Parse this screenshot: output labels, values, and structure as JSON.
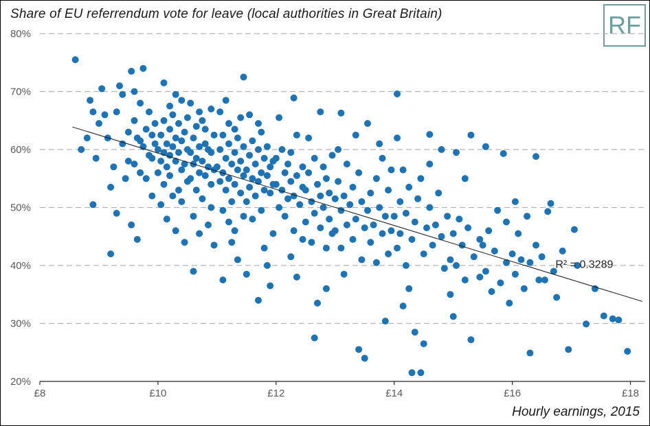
{
  "logo": {
    "text": "RF",
    "color": "#6d9e9e"
  },
  "chart_data": {
    "type": "scatter",
    "title": "Share of EU referrendum vote for leave (local authorities in Great Britain)",
    "xlabel": "Hourly earnings, 2015",
    "ylabel": "",
    "xlim": [
      8,
      18.25
    ],
    "ylim": [
      20,
      80
    ],
    "xticks": [
      8,
      10,
      12,
      14,
      16,
      18
    ],
    "xtick_labels": [
      "£8",
      "£10",
      "£12",
      "£14",
      "£16",
      "£18"
    ],
    "yticks": [
      20,
      30,
      40,
      50,
      60,
      70,
      80
    ],
    "ytick_labels": [
      "20%",
      "30%",
      "40%",
      "50%",
      "60%",
      "70%",
      "80%"
    ],
    "grid": "horizontal-dashed",
    "legend": "none",
    "point_color": "#1e73b5",
    "axis_color": "#262626",
    "grid_color": "#b3b3b3",
    "tick_label_color": "#595959",
    "trendline": {
      "x1": 8.55,
      "y1": 63.9,
      "x2": 18.2,
      "y2": 33.8,
      "label": "R² = 0.3289",
      "label_x": 16.73,
      "label_y": 39.6
    },
    "points": [
      [
        8.6,
        75.5
      ],
      [
        8.7,
        60.0
      ],
      [
        8.8,
        62.0
      ],
      [
        8.85,
        68.5
      ],
      [
        8.9,
        66.5
      ],
      [
        8.9,
        50.5
      ],
      [
        8.95,
        58.5
      ],
      [
        9.0,
        64.5
      ],
      [
        9.05,
        70.5
      ],
      [
        9.1,
        66.0
      ],
      [
        9.15,
        62.0
      ],
      [
        9.2,
        42.0
      ],
      [
        9.2,
        53.5
      ],
      [
        9.25,
        57.0
      ],
      [
        9.3,
        49.0
      ],
      [
        9.3,
        66.5
      ],
      [
        9.35,
        71.0
      ],
      [
        9.4,
        69.5
      ],
      [
        9.4,
        61.0
      ],
      [
        9.45,
        55.0
      ],
      [
        9.5,
        63.0
      ],
      [
        9.5,
        58.0
      ],
      [
        9.55,
        73.5
      ],
      [
        9.55,
        47.0
      ],
      [
        9.6,
        65.0
      ],
      [
        9.6,
        57.5
      ],
      [
        9.6,
        70.0
      ],
      [
        9.65,
        62.0
      ],
      [
        9.65,
        44.5
      ],
      [
        9.7,
        68.0
      ],
      [
        9.7,
        56.0
      ],
      [
        9.7,
        61.5
      ],
      [
        9.75,
        74.0
      ],
      [
        9.75,
        60.5
      ],
      [
        9.8,
        63.5
      ],
      [
        9.8,
        55.0
      ],
      [
        9.85,
        66.5
      ],
      [
        9.85,
        59.0
      ],
      [
        9.9,
        58.5
      ],
      [
        9.9,
        52.0
      ],
      [
        9.9,
        62.5
      ],
      [
        9.95,
        61.0
      ],
      [
        9.95,
        64.5
      ],
      [
        10.0,
        60.0
      ],
      [
        10.0,
        56.0
      ],
      [
        10.05,
        62.5
      ],
      [
        10.05,
        58.0
      ],
      [
        10.05,
        50.5
      ],
      [
        10.1,
        65.0
      ],
      [
        10.1,
        71.5
      ],
      [
        10.1,
        59.5
      ],
      [
        10.1,
        54.0
      ],
      [
        10.15,
        61.0
      ],
      [
        10.15,
        57.0
      ],
      [
        10.15,
        48.0
      ],
      [
        10.2,
        63.5
      ],
      [
        10.2,
        59.0
      ],
      [
        10.2,
        55.5
      ],
      [
        10.2,
        67.5
      ],
      [
        10.25,
        66.0
      ],
      [
        10.25,
        60.5
      ],
      [
        10.25,
        52.0
      ],
      [
        10.3,
        62.0
      ],
      [
        10.3,
        58.0
      ],
      [
        10.3,
        46.0
      ],
      [
        10.3,
        69.5
      ],
      [
        10.35,
        64.5
      ],
      [
        10.35,
        59.5
      ],
      [
        10.35,
        53.0
      ],
      [
        10.4,
        61.5
      ],
      [
        10.4,
        56.5
      ],
      [
        10.4,
        68.5
      ],
      [
        10.4,
        51.0
      ],
      [
        10.45,
        63.0
      ],
      [
        10.45,
        57.5
      ],
      [
        10.45,
        44.0
      ],
      [
        10.5,
        60.0
      ],
      [
        10.5,
        54.5
      ],
      [
        10.5,
        65.5
      ],
      [
        10.55,
        59.5
      ],
      [
        10.55,
        55.0
      ],
      [
        10.55,
        68.0
      ],
      [
        10.6,
        62.0
      ],
      [
        10.6,
        57.5
      ],
      [
        10.6,
        48.5
      ],
      [
        10.6,
        39.0
      ],
      [
        10.65,
        64.0
      ],
      [
        10.65,
        58.5
      ],
      [
        10.65,
        53.0
      ],
      [
        10.7,
        60.5
      ],
      [
        10.7,
        56.0
      ],
      [
        10.7,
        66.5
      ],
      [
        10.7,
        45.5
      ],
      [
        10.75,
        58.0
      ],
      [
        10.75,
        51.5
      ],
      [
        10.75,
        65.0
      ],
      [
        10.8,
        61.0
      ],
      [
        10.8,
        55.5
      ],
      [
        10.8,
        63.5
      ],
      [
        10.85,
        57.0
      ],
      [
        10.85,
        47.0
      ],
      [
        10.85,
        60.0
      ],
      [
        10.9,
        59.5
      ],
      [
        10.9,
        54.0
      ],
      [
        10.9,
        67.0
      ],
      [
        10.9,
        50.0
      ],
      [
        10.95,
        56.5
      ],
      [
        10.95,
        62.5
      ],
      [
        10.95,
        43.5
      ],
      [
        11.0,
        57.0
      ],
      [
        11.05,
        60.0
      ],
      [
        11.05,
        54.5
      ],
      [
        11.05,
        66.5
      ],
      [
        11.1,
        62.5
      ],
      [
        11.1,
        56.0
      ],
      [
        11.1,
        49.5
      ],
      [
        11.1,
        37.5
      ],
      [
        11.15,
        58.5
      ],
      [
        11.15,
        53.0
      ],
      [
        11.15,
        68.5
      ],
      [
        11.2,
        61.0
      ],
      [
        11.2,
        55.0
      ],
      [
        11.2,
        64.5
      ],
      [
        11.2,
        47.5
      ],
      [
        11.25,
        57.5
      ],
      [
        11.25,
        51.0
      ],
      [
        11.25,
        44.0
      ],
      [
        11.3,
        59.5
      ],
      [
        11.3,
        54.0
      ],
      [
        11.3,
        46.0
      ],
      [
        11.3,
        63.5
      ],
      [
        11.35,
        62.0
      ],
      [
        11.35,
        56.5
      ],
      [
        11.35,
        41.0
      ],
      [
        11.4,
        58.0
      ],
      [
        11.4,
        52.5
      ],
      [
        11.4,
        65.5
      ],
      [
        11.45,
        72.5
      ],
      [
        11.45,
        55.5
      ],
      [
        11.45,
        60.5
      ],
      [
        11.45,
        48.5
      ],
      [
        11.5,
        56.5
      ],
      [
        11.5,
        51.0
      ],
      [
        11.5,
        38.5
      ],
      [
        11.55,
        59.0
      ],
      [
        11.55,
        53.5
      ],
      [
        11.55,
        66.0
      ],
      [
        11.6,
        61.5
      ],
      [
        11.6,
        55.0
      ],
      [
        11.6,
        48.0
      ],
      [
        11.65,
        57.5
      ],
      [
        11.65,
        52.0
      ],
      [
        11.7,
        60.0
      ],
      [
        11.7,
        54.5
      ],
      [
        11.7,
        34.0
      ],
      [
        11.7,
        64.5
      ],
      [
        11.75,
        56.0
      ],
      [
        11.75,
        49.5
      ],
      [
        11.75,
        63.0
      ],
      [
        11.8,
        58.5
      ],
      [
        11.8,
        53.0
      ],
      [
        11.8,
        43.0
      ],
      [
        11.85,
        55.5
      ],
      [
        11.85,
        60.5
      ],
      [
        11.85,
        40.0
      ],
      [
        11.9,
        52.5
      ],
      [
        11.9,
        57.0
      ],
      [
        11.9,
        36.5
      ],
      [
        11.95,
        54.0
      ],
      [
        11.95,
        58.0
      ],
      [
        11.95,
        45.5
      ],
      [
        12.0,
        54.0
      ],
      [
        12.0,
        58.5
      ],
      [
        12.05,
        50.0
      ],
      [
        12.05,
        65.5
      ],
      [
        12.1,
        60.0
      ],
      [
        12.1,
        53.0
      ],
      [
        12.15,
        56.0
      ],
      [
        12.15,
        48.5
      ],
      [
        12.2,
        57.5
      ],
      [
        12.2,
        51.5
      ],
      [
        12.25,
        54.5
      ],
      [
        12.25,
        59.5
      ],
      [
        12.25,
        41.5
      ],
      [
        12.3,
        52.0
      ],
      [
        12.3,
        46.0
      ],
      [
        12.3,
        68.9
      ],
      [
        12.35,
        55.5
      ],
      [
        12.35,
        62.5
      ],
      [
        12.35,
        38.0
      ],
      [
        12.4,
        50.5
      ],
      [
        12.45,
        53.5
      ],
      [
        12.45,
        57.0
      ],
      [
        12.45,
        44.5
      ],
      [
        12.5,
        53.0
      ],
      [
        12.5,
        47.5
      ],
      [
        12.55,
        56.0
      ],
      [
        12.55,
        62.0
      ],
      [
        12.6,
        51.0
      ],
      [
        12.6,
        44.0
      ],
      [
        12.65,
        58.5
      ],
      [
        12.65,
        49.0
      ],
      [
        12.65,
        27.5
      ],
      [
        12.7,
        54.0
      ],
      [
        12.7,
        33.5
      ],
      [
        12.75,
        52.0
      ],
      [
        12.75,
        46.5
      ],
      [
        12.75,
        66.5
      ],
      [
        12.8,
        57.0
      ],
      [
        12.8,
        50.0
      ],
      [
        12.85,
        43.0
      ],
      [
        12.85,
        55.0
      ],
      [
        12.85,
        36.0
      ],
      [
        12.9,
        48.0
      ],
      [
        12.9,
        52.5
      ],
      [
        12.95,
        45.5
      ],
      [
        12.95,
        59.0
      ],
      [
        13.0,
        51.5
      ],
      [
        13.0,
        46.0
      ],
      [
        13.05,
        54.5
      ],
      [
        13.05,
        60.0
      ],
      [
        13.1,
        49.5
      ],
      [
        13.1,
        43.0
      ],
      [
        13.1,
        66.3
      ],
      [
        13.15,
        52.0
      ],
      [
        13.15,
        38.5
      ],
      [
        13.2,
        47.0
      ],
      [
        13.2,
        57.5
      ],
      [
        13.25,
        50.5
      ],
      [
        13.3,
        44.5
      ],
      [
        13.3,
        53.5
      ],
      [
        13.35,
        48.0
      ],
      [
        13.35,
        62.5
      ],
      [
        13.4,
        25.5
      ],
      [
        13.4,
        56.0
      ],
      [
        13.45,
        51.0
      ],
      [
        13.45,
        41.0
      ],
      [
        13.5,
        24.0
      ],
      [
        13.5,
        46.5
      ],
      [
        13.55,
        49.5
      ],
      [
        13.55,
        64.5
      ],
      [
        13.6,
        44.0
      ],
      [
        13.6,
        52.5
      ],
      [
        13.65,
        47.0
      ],
      [
        13.7,
        55.0
      ],
      [
        13.7,
        40.5
      ],
      [
        13.75,
        50.0
      ],
      [
        13.75,
        61.0
      ],
      [
        13.8,
        45.5
      ],
      [
        13.8,
        58.5
      ],
      [
        13.85,
        48.5
      ],
      [
        13.85,
        30.4
      ],
      [
        13.9,
        42.0
      ],
      [
        13.9,
        53.0
      ],
      [
        13.95,
        46.0
      ],
      [
        13.95,
        56.5
      ],
      [
        14.0,
        48.5
      ],
      [
        14.05,
        69.6
      ],
      [
        14.05,
        43.0
      ],
      [
        14.05,
        62.0
      ],
      [
        14.1,
        51.0
      ],
      [
        14.1,
        45.5
      ],
      [
        14.15,
        56.5
      ],
      [
        14.15,
        33.0
      ],
      [
        14.2,
        40.0
      ],
      [
        14.2,
        49.0
      ],
      [
        14.25,
        53.5
      ],
      [
        14.25,
        36.0
      ],
      [
        14.3,
        44.5
      ],
      [
        14.3,
        21.5
      ],
      [
        14.35,
        47.5
      ],
      [
        14.35,
        28.5
      ],
      [
        14.4,
        51.5
      ],
      [
        14.45,
        21.5
      ],
      [
        14.45,
        55.0
      ],
      [
        14.5,
        26.5
      ],
      [
        14.5,
        42.0
      ],
      [
        14.55,
        46.5
      ],
      [
        14.6,
        50.0
      ],
      [
        14.6,
        62.6
      ],
      [
        14.6,
        57.5
      ],
      [
        14.65,
        43.5
      ],
      [
        14.7,
        47.0
      ],
      [
        14.75,
        52.5
      ],
      [
        14.8,
        45.0
      ],
      [
        14.8,
        60.0
      ],
      [
        14.85,
        39.5
      ],
      [
        14.9,
        48.5
      ],
      [
        14.95,
        41.0
      ],
      [
        14.95,
        35.0
      ],
      [
        15.0,
        31.2
      ],
      [
        15.0,
        45.5
      ],
      [
        15.05,
        59.5
      ],
      [
        15.05,
        40.0
      ],
      [
        15.1,
        48.0
      ],
      [
        15.15,
        43.5
      ],
      [
        15.2,
        55.0
      ],
      [
        15.2,
        37.5
      ],
      [
        15.25,
        46.5
      ],
      [
        15.3,
        27.2
      ],
      [
        15.3,
        62.5
      ],
      [
        15.35,
        41.5
      ],
      [
        15.45,
        44.5
      ],
      [
        15.45,
        38.0
      ],
      [
        15.5,
        43.5
      ],
      [
        15.55,
        60.5
      ],
      [
        15.55,
        39.0
      ],
      [
        15.6,
        46.0
      ],
      [
        15.65,
        35.5
      ],
      [
        15.7,
        42.5
      ],
      [
        15.75,
        49.5
      ],
      [
        15.8,
        37.0
      ],
      [
        15.85,
        59.3
      ],
      [
        15.9,
        40.5
      ],
      [
        15.9,
        47.5
      ],
      [
        15.95,
        33.5
      ],
      [
        16.0,
        42.0
      ],
      [
        16.05,
        51.0
      ],
      [
        16.05,
        38.5
      ],
      [
        16.1,
        45.5
      ],
      [
        16.15,
        41.0
      ],
      [
        16.2,
        36.0
      ],
      [
        16.25,
        48.5
      ],
      [
        16.3,
        24.9
      ],
      [
        16.3,
        40.5
      ],
      [
        16.4,
        58.8
      ],
      [
        16.4,
        43.5
      ],
      [
        16.45,
        37.5
      ],
      [
        16.5,
        41.5
      ],
      [
        16.55,
        37.5
      ],
      [
        16.6,
        49.3
      ],
      [
        16.65,
        50.7
      ],
      [
        16.7,
        39.0
      ],
      [
        16.75,
        34.5
      ],
      [
        16.85,
        42.5
      ],
      [
        16.95,
        25.5
      ],
      [
        17.05,
        46.2
      ],
      [
        17.1,
        40.0
      ],
      [
        17.25,
        29.9
      ],
      [
        17.4,
        36.0
      ],
      [
        17.55,
        31.3
      ],
      [
        17.7,
        30.8
      ],
      [
        17.8,
        30.6
      ],
      [
        17.95,
        25.2
      ]
    ]
  }
}
